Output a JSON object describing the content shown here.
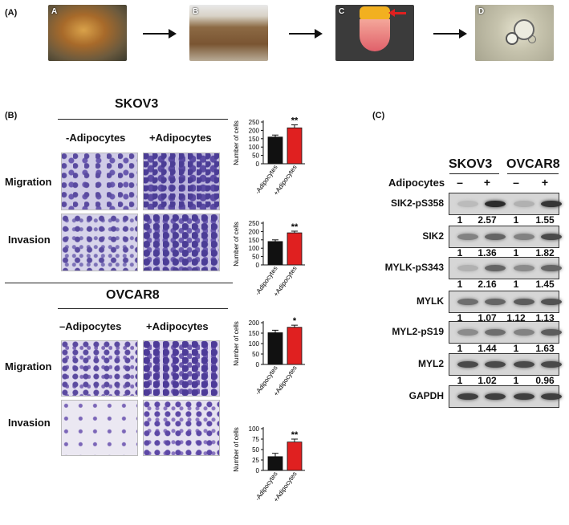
{
  "panel_a": {
    "label": "(A)",
    "steps": [
      {
        "letter": "A",
        "color": "#8a6c3c"
      },
      {
        "letter": "B",
        "color": "#8f7a5a"
      },
      {
        "letter": "C",
        "color": "#5a5a5a"
      },
      {
        "letter": "D",
        "color": "#b9b9a6"
      }
    ],
    "accent_arrow_color": "#e02020"
  },
  "panel_b": {
    "label": "(B)",
    "skov3": {
      "title": "SKOV3",
      "col_minus": "-Adipocytes",
      "col_plus": "+Adipocytes",
      "row_migration": "Migration",
      "row_invasion": "Invasion"
    },
    "ovcar8": {
      "title": "OVCAR8",
      "col_minus": "–Adipocytes",
      "col_plus": "+Adipocytes",
      "row_migration": "Migration",
      "row_invasion": "Invasion"
    }
  },
  "chart_data": [
    {
      "type": "bar",
      "panel": "SKOV3 Migration",
      "categories": [
        "-Adipocytes",
        "+Adipocytes"
      ],
      "values": [
        160,
        215
      ],
      "errors": [
        12,
        18
      ],
      "ylabel": "Number of cells",
      "yticks": [
        0,
        50,
        100,
        150,
        200,
        250
      ],
      "ylim": [
        0,
        250
      ],
      "significance": "**",
      "colors": [
        "#111111",
        "#e02020"
      ]
    },
    {
      "type": "bar",
      "panel": "SKOV3 Invasion",
      "categories": [
        "-Adipocytes",
        "+Adipocytes"
      ],
      "values": [
        140,
        192
      ],
      "errors": [
        10,
        10
      ],
      "ylabel": "Number of cells",
      "yticks": [
        0,
        50,
        100,
        150,
        200,
        250
      ],
      "ylim": [
        0,
        250
      ],
      "significance": "**",
      "colors": [
        "#111111",
        "#e02020"
      ]
    },
    {
      "type": "bar",
      "panel": "OVCAR8 Migration",
      "categories": [
        "-Adipocytes",
        "+Adipocytes"
      ],
      "values": [
        152,
        178
      ],
      "errors": [
        12,
        10
      ],
      "ylabel": "Number of cells",
      "yticks": [
        0,
        50,
        100,
        150,
        200
      ],
      "ylim": [
        0,
        200
      ],
      "significance": "*",
      "colors": [
        "#111111",
        "#e02020"
      ]
    },
    {
      "type": "bar",
      "panel": "OVCAR8 Invasion",
      "categories": [
        "-Adipocytes",
        "+Adipocytes"
      ],
      "values": [
        33,
        68
      ],
      "errors": [
        8,
        7
      ],
      "ylabel": "Number of cells",
      "yticks": [
        0,
        25,
        50,
        75,
        100
      ],
      "ylim": [
        0,
        100
      ],
      "significance": "**",
      "colors": [
        "#111111",
        "#e02020"
      ]
    }
  ],
  "panel_c": {
    "label": "(C)",
    "cell_line_1": "SKOV3",
    "cell_line_2": "OVCAR8",
    "treatment_label": "Adipocytes",
    "lanes": [
      "–",
      "+",
      "–",
      "+"
    ],
    "rows": [
      {
        "protein": "SIK2-pS358",
        "quant": [
          "1",
          "2.57",
          "1",
          "1.55"
        ],
        "intensity": [
          0.15,
          0.9,
          0.2,
          0.85
        ]
      },
      {
        "protein": "SIK2",
        "quant": [
          "1",
          "1.36",
          "1",
          "1.82"
        ],
        "intensity": [
          0.45,
          0.6,
          0.45,
          0.75
        ]
      },
      {
        "protein": "MYLK-pS343",
        "quant": [
          "1",
          "2.16",
          "1",
          "1.45"
        ],
        "intensity": [
          0.2,
          0.6,
          0.4,
          0.6
        ]
      },
      {
        "protein": "MYLK",
        "quant": [
          "1",
          "1.07",
          "1.12",
          "1.13"
        ],
        "intensity": [
          0.55,
          0.6,
          0.65,
          0.7
        ]
      },
      {
        "protein": "MYL2-pS19",
        "quant": [
          "1",
          "1.44",
          "1",
          "1.63"
        ],
        "intensity": [
          0.4,
          0.55,
          0.45,
          0.65
        ]
      },
      {
        "protein": "MYL2",
        "quant": [
          "1",
          "1.02",
          "1",
          "0.96"
        ],
        "intensity": [
          0.75,
          0.75,
          0.75,
          0.75
        ]
      },
      {
        "protein": "GAPDH",
        "quant": [],
        "intensity": [
          0.8,
          0.8,
          0.8,
          0.8
        ]
      }
    ]
  }
}
